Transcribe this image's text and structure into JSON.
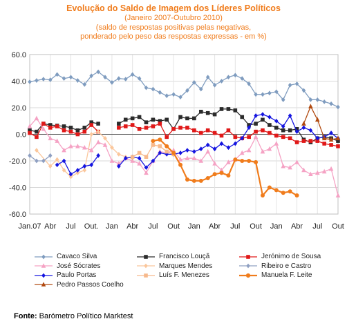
{
  "chart_data": {
    "type": "line",
    "title": "Evolução do Saldo  de Imagem dos Líderes Políticos",
    "subtitle": "(Janeiro 2007-Outubro 2010)",
    "subtitle2": "(saldo de respostas positivas pelas negativas,",
    "subtitle3": "ponderado pelo peso das respostas expressas - em %)",
    "ylim": [
      -60,
      60
    ],
    "yticks": [
      "60.0",
      "40.0",
      "20.0",
      "0.0",
      "-20.0",
      "-40.0",
      "-60.0"
    ],
    "ytick_values": [
      60,
      40,
      20,
      0,
      -20,
      -40,
      -60
    ],
    "xtick_labels": [
      "Jan.07",
      "Abr",
      "Jul",
      "Out.",
      "Jan",
      "Abr",
      "Jul",
      "Out",
      "Jan",
      "Abr",
      "Jul",
      "Out",
      "Jan",
      "Abr",
      "Jul",
      "Out"
    ],
    "x_range": [
      0,
      45
    ],
    "grid": true,
    "legend_position": "bottom",
    "series": [
      {
        "name": "Cavaco Silva",
        "color": "#7f9cbf",
        "marker": "diamond",
        "width": 1.3,
        "values": [
          [
            0,
            39.5
          ],
          [
            1,
            40.5
          ],
          [
            2,
            41.5
          ],
          [
            3,
            41
          ],
          [
            4,
            45
          ],
          [
            5,
            42
          ],
          [
            6,
            43
          ],
          [
            7,
            40.5
          ],
          [
            8,
            37.5
          ],
          [
            9,
            44
          ],
          [
            10,
            47
          ],
          [
            11,
            43
          ],
          [
            12,
            39
          ],
          [
            13,
            42
          ],
          [
            14,
            41.5
          ],
          [
            15,
            45
          ],
          [
            16,
            42
          ],
          [
            17,
            35
          ],
          [
            18,
            34
          ],
          [
            19,
            31.5
          ],
          [
            20,
            29
          ],
          [
            21,
            30
          ],
          [
            22,
            28
          ],
          [
            23,
            33
          ],
          [
            24,
            39
          ],
          [
            25,
            34
          ],
          [
            26,
            43
          ],
          [
            27,
            37
          ],
          [
            28,
            40
          ],
          [
            29,
            43
          ],
          [
            30,
            44.5
          ],
          [
            31,
            42
          ],
          [
            32,
            38
          ],
          [
            33,
            30
          ],
          [
            34,
            30
          ],
          [
            35,
            31
          ],
          [
            36,
            32
          ],
          [
            37,
            26
          ],
          [
            38,
            37
          ],
          [
            39,
            38
          ],
          [
            40,
            33
          ],
          [
            41,
            26
          ],
          [
            42,
            26
          ],
          [
            43,
            24.5
          ],
          [
            44,
            23
          ],
          [
            45,
            20.5
          ]
        ]
      },
      {
        "name": "Francisco Louçã",
        "color": "#2b2b2b",
        "marker": "square",
        "width": 1.3,
        "values": [
          [
            0,
            3
          ],
          [
            1,
            2
          ],
          [
            2,
            8
          ],
          [
            3,
            7
          ],
          [
            4,
            6.5
          ],
          [
            5,
            6
          ],
          [
            6,
            5
          ],
          [
            7,
            3
          ],
          [
            8,
            5
          ],
          [
            9,
            9
          ],
          [
            10,
            8
          ],
          null,
          [
            13,
            8
          ],
          [
            14,
            11
          ],
          [
            15,
            12
          ],
          [
            16,
            13
          ],
          [
            17,
            9
          ],
          [
            18,
            11
          ],
          [
            19,
            10
          ],
          [
            20,
            11
          ],
          [
            21,
            4
          ],
          [
            22,
            13
          ],
          [
            23,
            12
          ],
          [
            24,
            12
          ],
          [
            25,
            17
          ],
          [
            26,
            16
          ],
          [
            27,
            15
          ],
          [
            28,
            19
          ],
          [
            29,
            19
          ],
          [
            30,
            18
          ],
          [
            31,
            13
          ],
          [
            32,
            7
          ],
          [
            33,
            8
          ],
          [
            34,
            11
          ],
          [
            35,
            7
          ],
          [
            36,
            5
          ],
          [
            37,
            3
          ],
          [
            38,
            3
          ],
          [
            39,
            4
          ],
          [
            40,
            -4
          ],
          [
            41,
            -6
          ],
          [
            42,
            -3
          ],
          [
            43,
            -2
          ],
          [
            44,
            -3
          ],
          [
            45,
            -5
          ]
        ]
      },
      {
        "name": "Jerónimo de Sousa",
        "color": "#e01818",
        "marker": "square",
        "width": 1.3,
        "values": [
          [
            0,
            1
          ],
          [
            1,
            -2
          ],
          [
            2,
            8
          ],
          [
            3,
            5
          ],
          [
            4,
            6
          ],
          [
            5,
            3
          ],
          [
            6,
            2
          ],
          [
            7,
            0
          ],
          [
            8,
            2
          ],
          [
            9,
            7
          ],
          [
            10,
            2
          ],
          null,
          [
            13,
            5
          ],
          [
            14,
            6
          ],
          [
            15,
            7
          ],
          [
            16,
            4
          ],
          [
            17,
            5
          ],
          [
            18,
            6
          ],
          [
            19,
            8
          ],
          [
            20,
            -2
          ],
          [
            21,
            4
          ],
          [
            22,
            5
          ],
          [
            23,
            5
          ],
          [
            24,
            3
          ],
          [
            25,
            1
          ],
          [
            26,
            3
          ],
          [
            27,
            1
          ],
          [
            28,
            -1
          ],
          [
            29,
            3
          ],
          [
            30,
            -2
          ],
          [
            31,
            -3
          ],
          [
            32,
            -2
          ],
          [
            33,
            2
          ],
          [
            34,
            3
          ],
          [
            35,
            1
          ],
          [
            36,
            -1
          ],
          [
            37,
            -2
          ],
          [
            38,
            -3
          ],
          [
            39,
            -6
          ],
          [
            40,
            -5
          ],
          [
            41,
            -5
          ],
          [
            42,
            -5
          ],
          [
            43,
            -7
          ],
          [
            44,
            -8
          ],
          [
            45,
            -9
          ]
        ]
      },
      {
        "name": "José Sócrates",
        "color": "#f5a2c4",
        "marker": "triangle",
        "width": 1.3,
        "values": [
          [
            0,
            6
          ],
          [
            1,
            12
          ],
          [
            2,
            4
          ],
          [
            3,
            -3
          ],
          [
            4,
            -5
          ],
          [
            5,
            -12
          ],
          [
            6,
            -9
          ],
          [
            7,
            -9
          ],
          [
            8,
            -10
          ],
          [
            9,
            -12
          ],
          [
            10,
            -6
          ],
          [
            11,
            -8
          ],
          [
            12,
            -20
          ],
          [
            13,
            -22
          ],
          [
            14,
            -18
          ],
          [
            15,
            -20
          ],
          [
            16,
            -22
          ],
          [
            17,
            -29
          ],
          [
            18,
            -20
          ],
          [
            19,
            -13
          ],
          [
            20,
            -14
          ],
          [
            21,
            -12
          ],
          [
            22,
            -19
          ],
          [
            23,
            -18
          ],
          [
            24,
            -18
          ],
          [
            25,
            -20
          ],
          [
            26,
            -13
          ],
          [
            27,
            -22
          ],
          [
            28,
            -27
          ],
          [
            29,
            -21
          ],
          [
            30,
            -19
          ],
          [
            31,
            -14
          ],
          [
            32,
            -12
          ],
          [
            33,
            -2
          ],
          [
            34,
            -13
          ],
          [
            35,
            -11
          ],
          [
            36,
            -7
          ],
          [
            37,
            -24
          ],
          [
            38,
            -25
          ],
          [
            39,
            -21
          ],
          [
            40,
            -27
          ],
          [
            41,
            -30
          ],
          [
            42,
            -29
          ],
          [
            43,
            -28
          ],
          [
            44,
            -26
          ],
          [
            45,
            -46
          ]
        ]
      },
      {
        "name": "Marques Mendes",
        "color": "#fbc79c",
        "marker": "diamond",
        "width": 1.3,
        "values": [
          [
            1,
            -12
          ],
          [
            3,
            -24
          ],
          [
            4,
            -19
          ],
          [
            5,
            -27
          ],
          [
            6,
            -32
          ],
          [
            7,
            -29
          ],
          [
            8,
            -27
          ],
          [
            9,
            0
          ],
          [
            10,
            2
          ],
          [
            11,
            -3
          ],
          [
            12,
            -10
          ],
          [
            13,
            -15
          ],
          [
            14,
            -17
          ],
          [
            15,
            -18
          ]
        ]
      },
      {
        "name": "Ribeiro e Castro",
        "color": "#8fa0c2",
        "marker": "diamond",
        "width": 1.3,
        "values": [
          [
            0,
            -16
          ],
          [
            1,
            -20
          ],
          [
            2,
            -20
          ],
          [
            3,
            -16
          ]
        ]
      },
      {
        "name": "Paulo Portas",
        "color": "#1414e0",
        "marker": "diamond",
        "width": 1.3,
        "values": [
          [
            4,
            -23
          ],
          [
            5,
            -20
          ],
          [
            6,
            -30
          ],
          [
            7,
            -27
          ],
          [
            8,
            -24
          ],
          [
            9,
            -23
          ],
          [
            10,
            -16
          ],
          null,
          [
            13,
            -24
          ],
          [
            14,
            -18
          ],
          [
            15,
            -17
          ],
          [
            16,
            -18
          ],
          [
            17,
            -25
          ],
          [
            18,
            -20
          ],
          [
            19,
            -14
          ],
          [
            20,
            -15
          ],
          [
            21,
            -15
          ],
          [
            22,
            -14
          ],
          [
            23,
            -12
          ],
          [
            24,
            -13
          ],
          [
            25,
            -11
          ],
          [
            26,
            -8
          ],
          [
            27,
            -11
          ],
          [
            28,
            -7
          ],
          [
            29,
            -10
          ],
          [
            30,
            -7
          ],
          [
            31,
            -3
          ],
          [
            32,
            5
          ],
          [
            33,
            14
          ],
          [
            34,
            15
          ],
          [
            35,
            13
          ],
          [
            36,
            10
          ],
          [
            37,
            6
          ],
          [
            38,
            14
          ],
          [
            39,
            2
          ],
          [
            40,
            5
          ],
          [
            41,
            3
          ],
          [
            42,
            -3
          ],
          [
            43,
            -2
          ],
          [
            44,
            1
          ],
          [
            45,
            -3
          ]
        ]
      },
      {
        "name": "Luís F. Menezes",
        "color": "#f7b98c",
        "marker": "square",
        "width": 1.3,
        "values": [
          [
            15,
            -17
          ],
          [
            16,
            -14
          ],
          [
            17,
            -17
          ],
          [
            18,
            -8
          ],
          [
            19,
            -9
          ],
          [
            20,
            -13
          ],
          [
            21,
            -15
          ]
        ]
      },
      {
        "name": "Manuela F. Leite",
        "color": "#f07c1c",
        "marker": "circle",
        "width": 2.2,
        "values": [
          [
            18,
            -5
          ],
          [
            19,
            -4
          ],
          [
            20,
            -9
          ],
          [
            21,
            -14
          ],
          [
            22,
            -23
          ],
          [
            23,
            -34
          ],
          [
            24,
            -35
          ],
          [
            25,
            -35
          ],
          [
            26,
            -33
          ],
          [
            27,
            -30
          ],
          [
            28,
            -29
          ],
          [
            29,
            -31
          ],
          [
            30,
            -19
          ],
          [
            31,
            -20
          ],
          [
            32,
            -20
          ],
          [
            33,
            -21
          ],
          [
            34,
            -46
          ],
          [
            35,
            -40
          ],
          [
            36,
            -42
          ],
          [
            37,
            -44
          ],
          [
            38,
            -43
          ],
          [
            39,
            -46
          ]
        ]
      },
      {
        "name": "Pedro Passos Coelho",
        "color": "#b14a10",
        "marker": "triangle",
        "width": 1.3,
        "values": [
          [
            40,
            8
          ],
          [
            41,
            21
          ],
          [
            42,
            11
          ],
          [
            43,
            -3
          ],
          [
            44,
            -4
          ],
          [
            45,
            -3
          ]
        ]
      }
    ]
  },
  "source": {
    "label": "Fonte:",
    "text": "Barómetro Político Marktest"
  }
}
